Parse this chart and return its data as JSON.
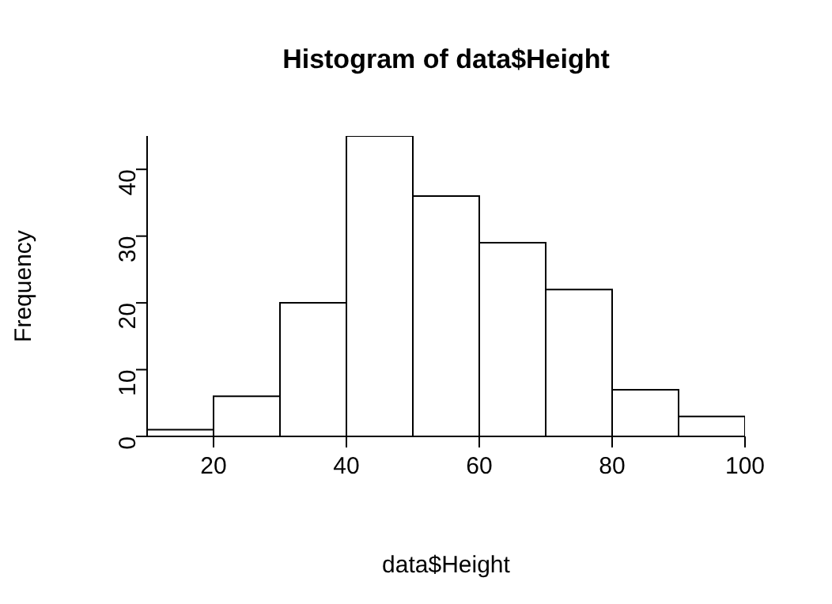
{
  "chart_data": {
    "type": "histogram",
    "title": "Histogram of data$Height",
    "xlabel": "data$Height",
    "ylabel": "Frequency",
    "bins": [
      10,
      20,
      30,
      40,
      50,
      60,
      70,
      80,
      90,
      100
    ],
    "values": [
      1,
      6,
      20,
      45,
      36,
      29,
      22,
      7,
      3
    ],
    "color": "#ffffff",
    "xlim": [
      10,
      100
    ],
    "xticks": [
      20,
      40,
      60,
      80,
      100
    ],
    "ylim": [
      0,
      45
    ],
    "yticks": [
      0,
      10,
      20,
      30,
      40
    ],
    "grid": false,
    "legend": false
  }
}
